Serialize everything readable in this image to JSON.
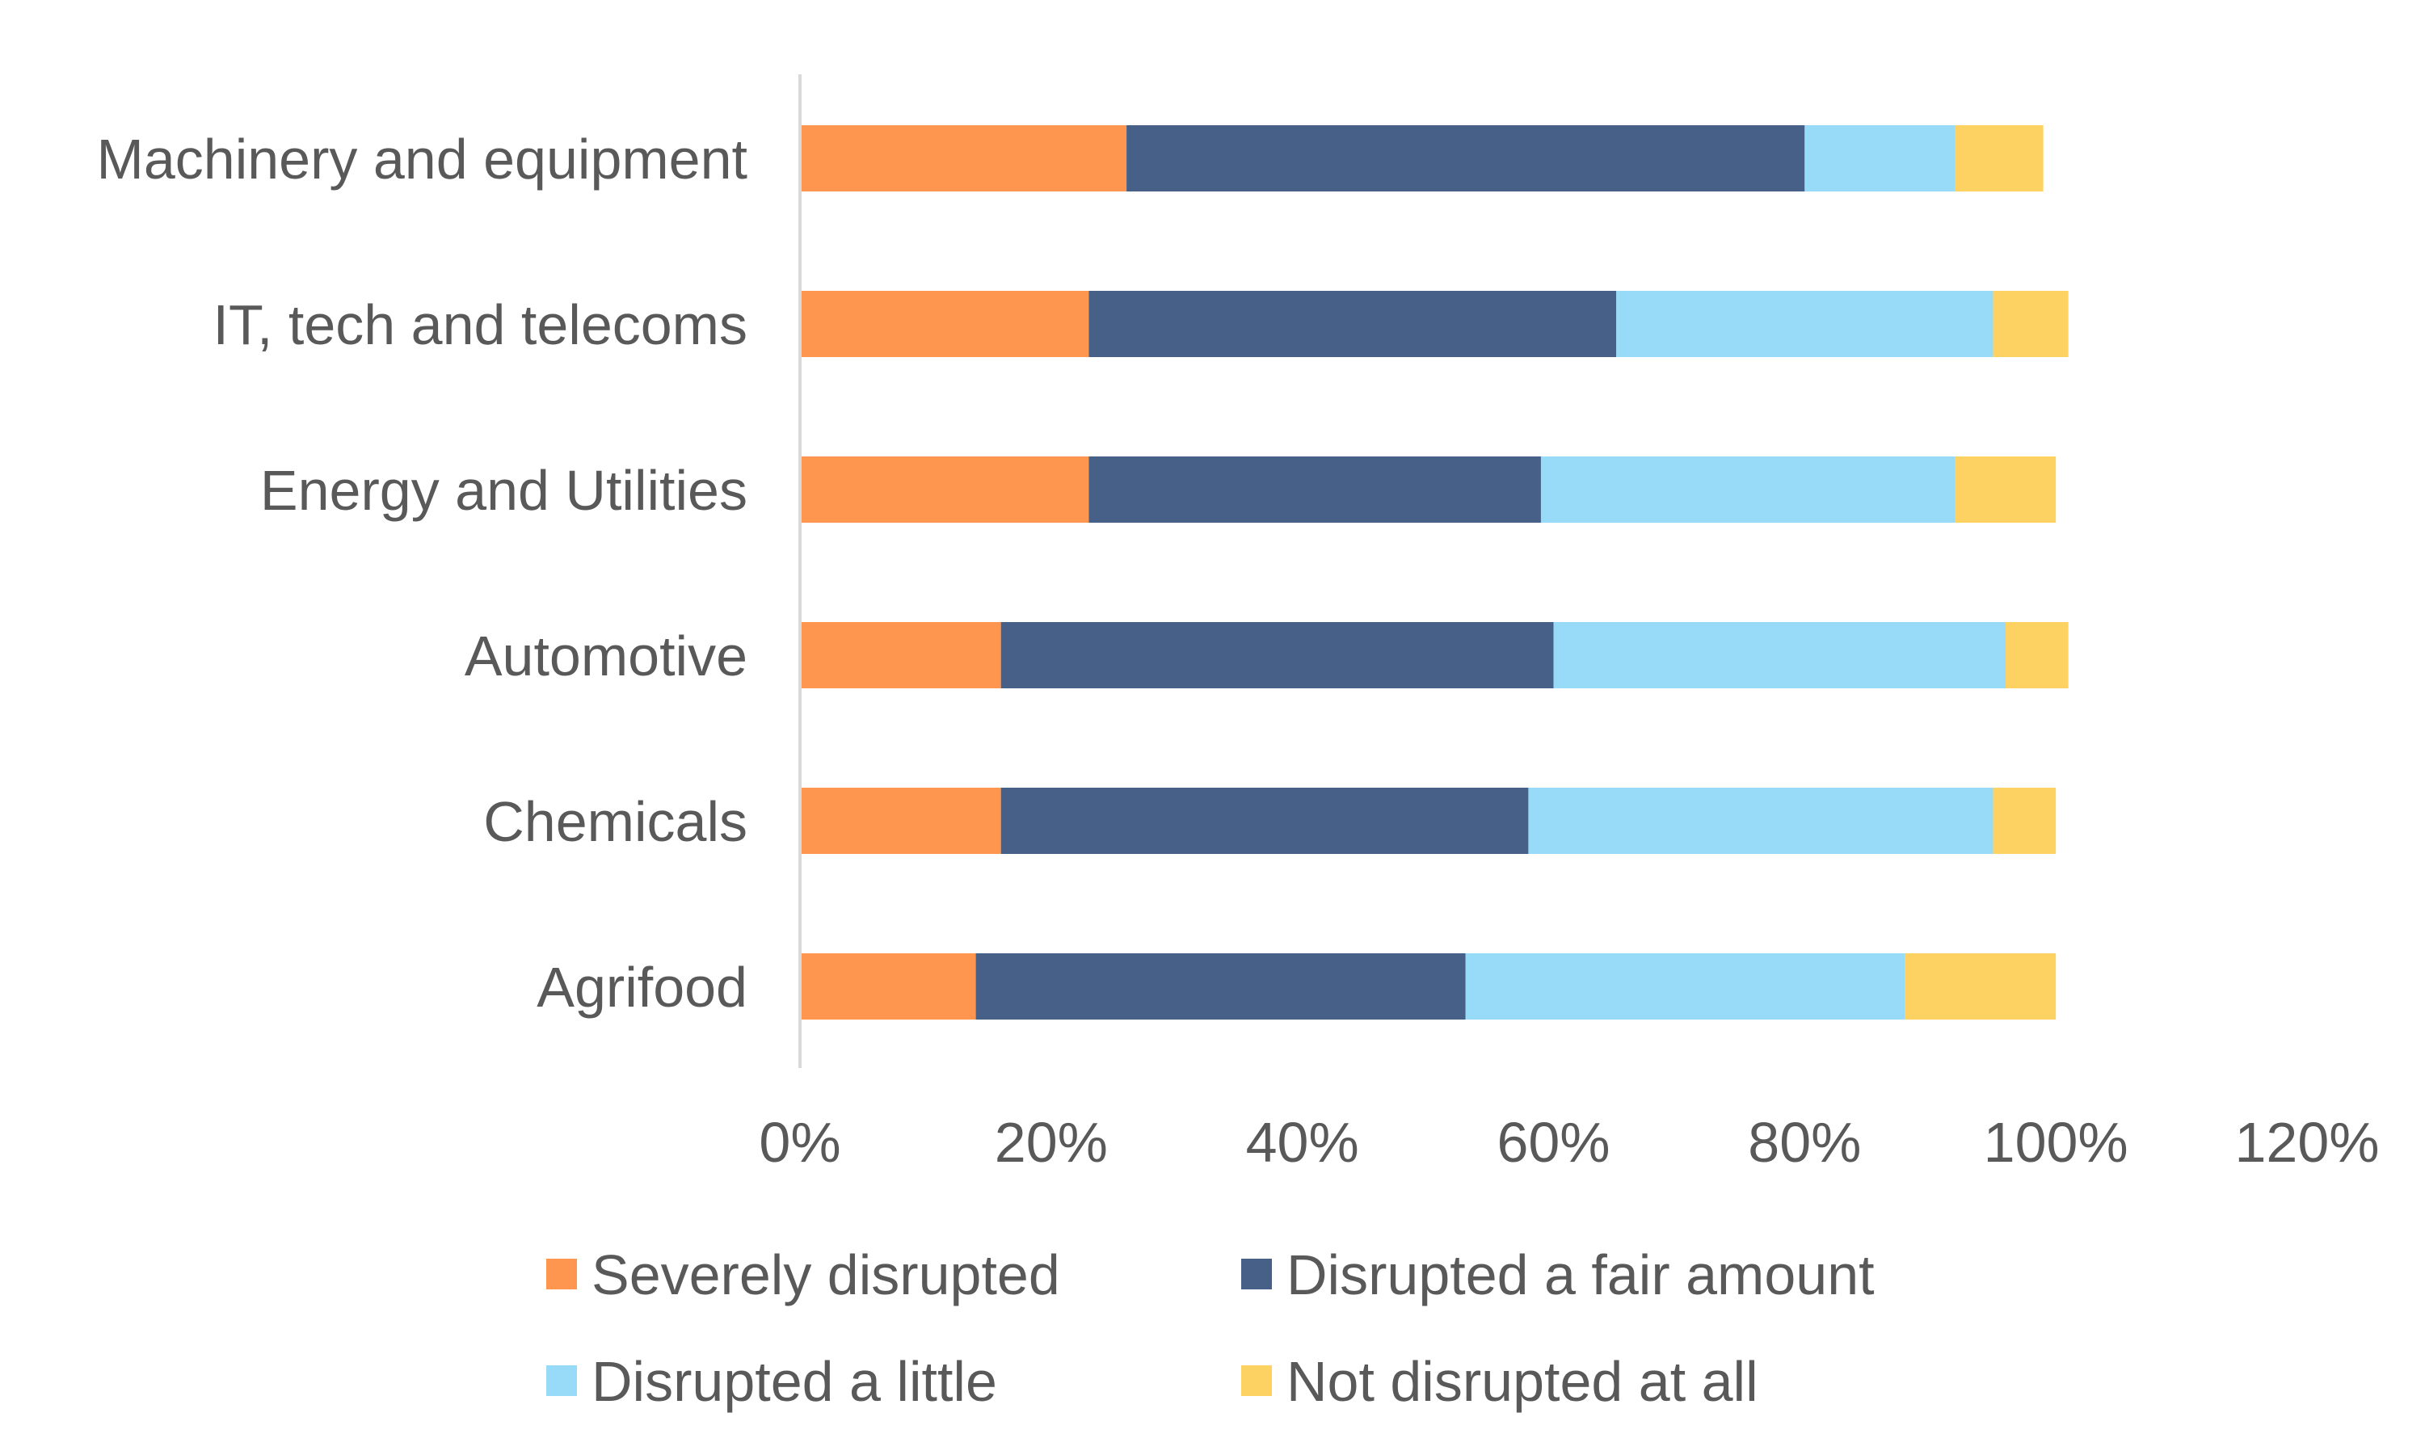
{
  "chart_data": {
    "type": "bar",
    "orientation": "horizontal",
    "stacked": true,
    "title": "",
    "xlabel": "",
    "ylabel": "",
    "xlim": [
      0,
      120
    ],
    "x_ticks": [
      "0%",
      "20%",
      "40%",
      "60%",
      "80%",
      "100%",
      "120%"
    ],
    "grid": false,
    "legend_position": "bottom",
    "categories": [
      "Machinery and equipment",
      "IT, tech and telecoms",
      "Energy and Utilities",
      "Automotive",
      "Chemicals",
      "Agrifood"
    ],
    "series": [
      {
        "name": "Severely disrupted",
        "color": "#FF964F",
        "values": [
          26,
          23,
          23,
          16,
          16,
          14
        ]
      },
      {
        "name": "Disrupted a fair amount",
        "color": "#466088",
        "values": [
          54,
          42,
          36,
          44,
          42,
          39
        ]
      },
      {
        "name": "Disrupted a little",
        "color": "#97DBF9",
        "values": [
          12,
          30,
          33,
          36,
          37,
          35
        ]
      },
      {
        "name": "Not disrupted at all",
        "color": "#FDD262",
        "values": [
          7,
          6,
          8,
          5,
          5,
          12
        ]
      }
    ]
  }
}
